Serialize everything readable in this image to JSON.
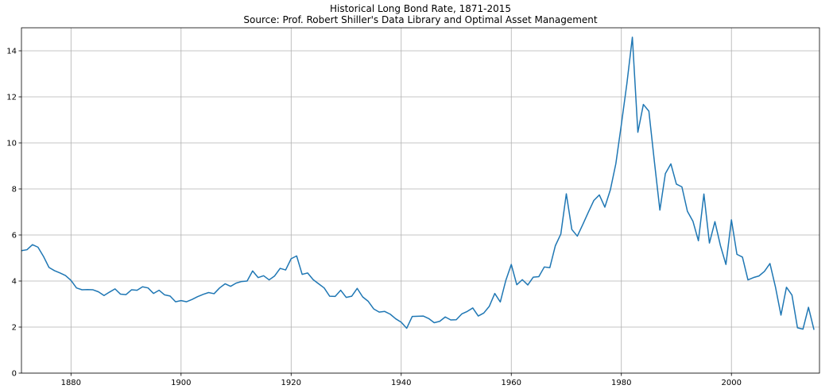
{
  "chart_data": {
    "type": "line",
    "title": "Historical Long Bond Rate, 1871-2015",
    "subtitle": "Source: Prof. Robert Shiller's Data Library and Optimal Asset Management",
    "xlabel": "",
    "ylabel": "",
    "xlim": [
      1871,
      2016
    ],
    "ylim": [
      0,
      15
    ],
    "grid": true,
    "line_color": "#1f77b4",
    "x_ticks": [
      1880,
      1900,
      1920,
      1940,
      1960,
      1980,
      2000
    ],
    "y_ticks": [
      0,
      2,
      4,
      6,
      8,
      10,
      12,
      14
    ],
    "series": [
      {
        "x": [
          1871,
          1872,
          1873,
          1874,
          1875,
          1876,
          1877,
          1878,
          1879,
          1880,
          1881,
          1882,
          1883,
          1884,
          1885,
          1886,
          1887,
          1888,
          1889,
          1890,
          1891,
          1892,
          1893,
          1894,
          1895,
          1896,
          1897,
          1898,
          1899,
          1900,
          1901,
          1902,
          1903,
          1904,
          1905,
          1906,
          1907,
          1908,
          1909,
          1910,
          1911,
          1912,
          1913,
          1914,
          1915,
          1916,
          1917,
          1918,
          1919,
          1920,
          1921,
          1922,
          1923,
          1924,
          1925,
          1926,
          1927,
          1928,
          1929,
          1930,
          1931,
          1932,
          1933,
          1934,
          1935,
          1936,
          1937,
          1938,
          1939,
          1940,
          1941,
          1942,
          1943,
          1944,
          1945,
          1946,
          1947,
          1948,
          1949,
          1950,
          1951,
          1952,
          1953,
          1954,
          1955,
          1956,
          1957,
          1958,
          1959,
          1960,
          1961,
          1962,
          1963,
          1964,
          1965,
          1966,
          1967,
          1968,
          1969,
          1970,
          1971,
          1972,
          1973,
          1974,
          1975,
          1976,
          1977,
          1978,
          1979,
          1980,
          1981,
          1982,
          1983,
          1984,
          1985,
          1986,
          1987,
          1988,
          1989,
          1990,
          1991,
          1992,
          1993,
          1994,
          1995,
          1996,
          1997,
          1998,
          1999,
          2000,
          2001,
          2002,
          2003,
          2004,
          2005,
          2006,
          2007,
          2008,
          2009,
          2010,
          2011,
          2012,
          2013,
          2014,
          2015
        ],
        "values": [
          5.32,
          5.36,
          5.58,
          5.47,
          5.07,
          4.59,
          4.45,
          4.35,
          4.24,
          4.03,
          3.7,
          3.62,
          3.63,
          3.62,
          3.53,
          3.37,
          3.52,
          3.66,
          3.43,
          3.41,
          3.62,
          3.6,
          3.75,
          3.7,
          3.46,
          3.6,
          3.4,
          3.35,
          3.1,
          3.15,
          3.1,
          3.2,
          3.32,
          3.42,
          3.5,
          3.45,
          3.7,
          3.88,
          3.77,
          3.91,
          3.98,
          4.0,
          4.44,
          4.15,
          4.23,
          4.05,
          4.22,
          4.55,
          4.48,
          4.97,
          5.09,
          4.29,
          4.35,
          4.06,
          3.88,
          3.7,
          3.34,
          3.33,
          3.6,
          3.29,
          3.34,
          3.68,
          3.31,
          3.12,
          2.79,
          2.65,
          2.68,
          2.56,
          2.36,
          2.21,
          1.95,
          2.46,
          2.47,
          2.48,
          2.37,
          2.19,
          2.25,
          2.44,
          2.31,
          2.32,
          2.57,
          2.68,
          2.83,
          2.48,
          2.61,
          2.9,
          3.46,
          3.09,
          4.02,
          4.72,
          3.84,
          4.06,
          3.83,
          4.17,
          4.19,
          4.61,
          4.58,
          5.53,
          6.04,
          7.79,
          6.24,
          5.95,
          6.46,
          6.99,
          7.5,
          7.74,
          7.21,
          7.96,
          9.1,
          10.8,
          12.57,
          14.59,
          10.46,
          11.67,
          11.38,
          9.19,
          7.08,
          8.67,
          9.09,
          8.21,
          8.09,
          7.03,
          6.6,
          5.75,
          7.78,
          5.65,
          6.58,
          5.54,
          4.72,
          6.66,
          5.16,
          5.04,
          4.05,
          4.15,
          4.22,
          4.42,
          4.76,
          3.74,
          2.52,
          3.73,
          3.39,
          1.97,
          1.91,
          2.86,
          1.88
        ]
      }
    ]
  }
}
